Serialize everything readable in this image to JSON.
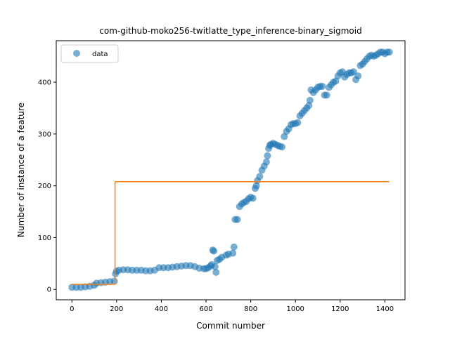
{
  "chart_data": {
    "type": "scatter",
    "title": "com-github-moko256-twitlatte_type_inference-binary_sigmoid",
    "xlabel": "Commit number",
    "ylabel": "Number of instance of a feature",
    "xlim": [
      -70,
      1490
    ],
    "ylim": [
      -20,
      480
    ],
    "xticks": [
      0,
      200,
      400,
      600,
      800,
      1000,
      1200,
      1400
    ],
    "yticks": [
      0,
      100,
      200,
      300,
      400
    ],
    "legend": {
      "position": "top-left",
      "entries": [
        "data"
      ]
    },
    "colors": {
      "data": "#1f77b4",
      "fit": "#ff7f0e"
    },
    "series": [
      {
        "name": "data",
        "kind": "scatter",
        "x": [
          0,
          20,
          40,
          60,
          80,
          100,
          110,
          130,
          150,
          170,
          190,
          195,
          200,
          210,
          230,
          250,
          270,
          290,
          310,
          330,
          350,
          370,
          390,
          410,
          430,
          450,
          470,
          490,
          510,
          530,
          550,
          570,
          590,
          600,
          610,
          620,
          625,
          630,
          635,
          640,
          645,
          650,
          660,
          670,
          690,
          700,
          720,
          725,
          730,
          740,
          750,
          760,
          770,
          780,
          790,
          800,
          810,
          820,
          825,
          830,
          840,
          850,
          860,
          870,
          875,
          880,
          885,
          890,
          900,
          910,
          920,
          930,
          940,
          950,
          960,
          970,
          980,
          990,
          1000,
          1010,
          1020,
          1030,
          1040,
          1050,
          1060,
          1065,
          1070,
          1080,
          1090,
          1100,
          1110,
          1120,
          1130,
          1140,
          1150,
          1160,
          1170,
          1180,
          1190,
          1200,
          1210,
          1220,
          1230,
          1240,
          1250,
          1260,
          1270,
          1280,
          1290,
          1300,
          1310,
          1320,
          1330,
          1340,
          1350,
          1360,
          1370,
          1380,
          1390,
          1400,
          1410,
          1420
        ],
        "y": [
          4,
          4,
          4,
          5,
          6,
          8,
          12,
          13,
          14,
          15,
          16,
          30,
          35,
          37,
          38,
          38,
          37,
          37,
          37,
          36,
          36,
          37,
          42,
          42,
          42,
          43,
          44,
          45,
          46,
          46,
          44,
          41,
          40,
          40,
          42,
          45,
          48,
          76,
          74,
          44,
          33,
          56,
          58,
          62,
          66,
          68,
          70,
          82,
          135,
          135,
          160,
          165,
          168,
          170,
          175,
          178,
          176,
          195,
          200,
          210,
          218,
          230,
          238,
          246,
          258,
          272,
          278,
          280,
          282,
          280,
          278,
          276,
          275,
          295,
          305,
          310,
          318,
          320,
          320,
          322,
          335,
          340,
          345,
          350,
          355,
          365,
          385,
          380,
          385,
          390,
          392,
          392,
          375,
          375,
          390,
          395,
          400,
          402,
          412,
          418,
          420,
          410,
          415,
          418,
          418,
          420,
          405,
          412,
          432,
          435,
          440,
          445,
          450,
          452,
          450,
          452,
          455,
          458,
          458,
          455,
          458,
          458
        ]
      },
      {
        "name": "",
        "kind": "step",
        "x": [
          0,
          193,
          193,
          1420
        ],
        "y": [
          10,
          10,
          208,
          208
        ]
      }
    ]
  }
}
